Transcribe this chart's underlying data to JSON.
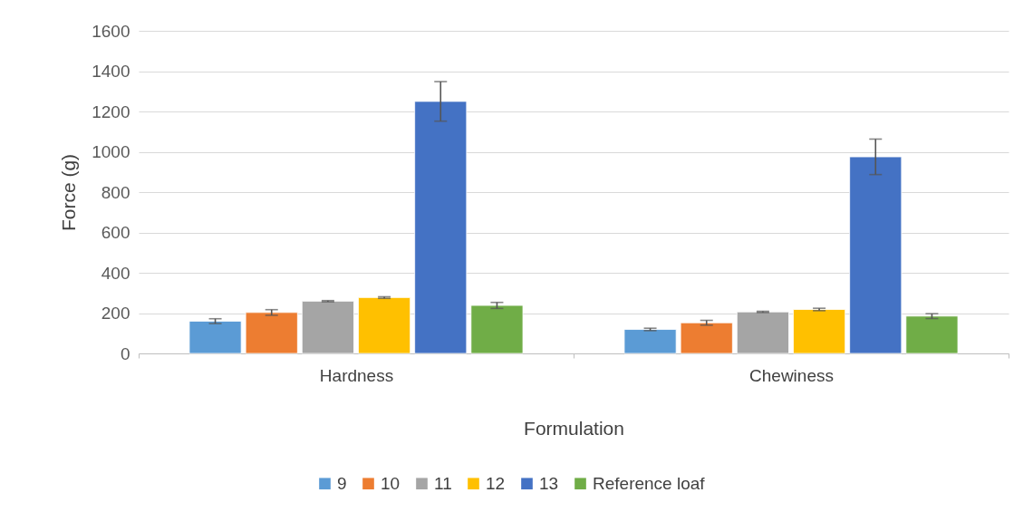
{
  "chart_data": {
    "type": "bar",
    "xlabel": "Formulation",
    "ylabel": "Force (g)",
    "categories": [
      "Hardness",
      "Chewiness"
    ],
    "series": [
      {
        "name": "9",
        "color": "#5b9bd5",
        "values": [
          160,
          119
        ],
        "errors": [
          12,
          6
        ]
      },
      {
        "name": "10",
        "color": "#ed7d31",
        "values": [
          203,
          152
        ],
        "errors": [
          14,
          12
        ]
      },
      {
        "name": "11",
        "color": "#a5a5a5",
        "values": [
          259,
          206
        ],
        "errors": [
          3,
          3
        ]
      },
      {
        "name": "12",
        "color": "#ffc000",
        "values": [
          277,
          218
        ],
        "errors": [
          4,
          6
        ]
      },
      {
        "name": "13",
        "color": "#4472c4",
        "values": [
          1250,
          975
        ],
        "errors": [
          98,
          88
        ]
      },
      {
        "name": "Reference loaf",
        "color": "#70ad47",
        "values": [
          238,
          185
        ],
        "errors": [
          15,
          12
        ]
      }
    ],
    "ylim": [
      0,
      1600
    ],
    "yticks": [
      0,
      200,
      400,
      600,
      800,
      1000,
      1200,
      1400,
      1600
    ],
    "grid": "y",
    "legend": "bottom"
  }
}
